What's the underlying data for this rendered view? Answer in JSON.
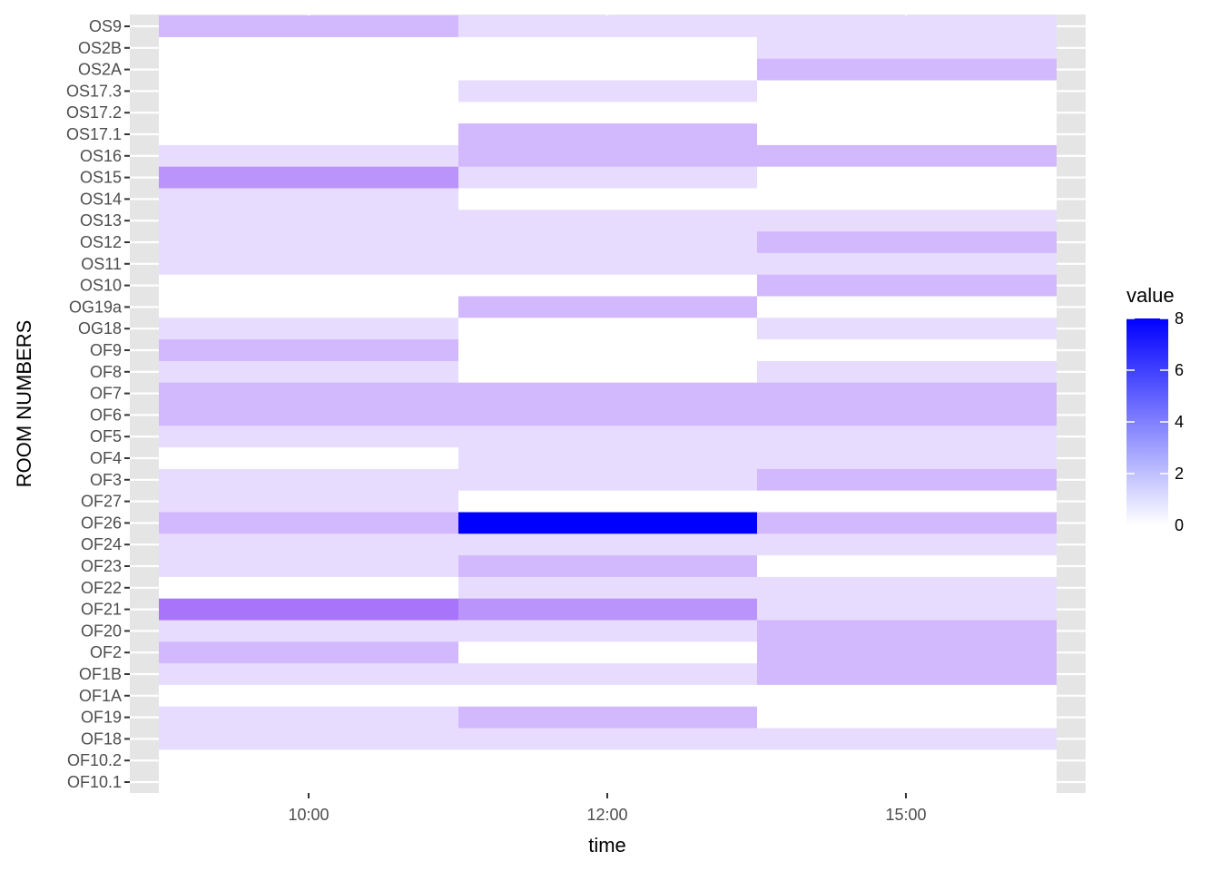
{
  "chart_data": {
    "type": "heatmap",
    "title": "",
    "xlabel": "time",
    "ylabel": "ROOM NUMBERS",
    "x_tick_labels": [
      "10:00",
      "12:00",
      "15:00"
    ],
    "rows": [
      "OS9",
      "OS2B",
      "OS2A",
      "OS17.3",
      "OS17.2",
      "OS17.1",
      "OS16",
      "OS15",
      "OS14",
      "OS13",
      "OS12",
      "OS11",
      "OS10",
      "OG19a",
      "OG18",
      "OF9",
      "OF8",
      "OF7",
      "OF6",
      "OF5",
      "OF4",
      "OF3",
      "OF27",
      "OF26",
      "OF24",
      "OF23",
      "OF22",
      "OF21",
      "OF20",
      "OF2",
      "OF1B",
      "OF1A",
      "OF19",
      "OF18",
      "OF10.2",
      "OF10.1"
    ],
    "cells": [
      {
        "row": "OS9",
        "x": "10:00",
        "value": 2
      },
      {
        "row": "OS9",
        "x": "12:00",
        "value": 1
      },
      {
        "row": "OS9",
        "x": "15:00",
        "value": 1
      },
      {
        "row": "OS2B",
        "x": "15:00",
        "value": 1
      },
      {
        "row": "OS2A",
        "x": "15:00",
        "value": 2
      },
      {
        "row": "OS17.3",
        "x": "12:00",
        "value": 1
      },
      {
        "row": "OS17.1",
        "x": "12:00",
        "value": 2
      },
      {
        "row": "OS16",
        "x": "10:00",
        "value": 1
      },
      {
        "row": "OS16",
        "x": "12:00",
        "value": 2
      },
      {
        "row": "OS16",
        "x": "15:00",
        "value": 2
      },
      {
        "row": "OS15",
        "x": "10:00",
        "value": 3
      },
      {
        "row": "OS15",
        "x": "12:00",
        "value": 1
      },
      {
        "row": "OS14",
        "x": "10:00",
        "value": 1
      },
      {
        "row": "OS13",
        "x": "10:00",
        "value": 1
      },
      {
        "row": "OS13",
        "x": "12:00",
        "value": 1
      },
      {
        "row": "OS13",
        "x": "15:00",
        "value": 1
      },
      {
        "row": "OS12",
        "x": "10:00",
        "value": 1
      },
      {
        "row": "OS12",
        "x": "12:00",
        "value": 1
      },
      {
        "row": "OS12",
        "x": "15:00",
        "value": 2
      },
      {
        "row": "OS11",
        "x": "10:00",
        "value": 1
      },
      {
        "row": "OS11",
        "x": "12:00",
        "value": 1
      },
      {
        "row": "OS11",
        "x": "15:00",
        "value": 1
      },
      {
        "row": "OS10",
        "x": "15:00",
        "value": 2
      },
      {
        "row": "OG19a",
        "x": "12:00",
        "value": 2
      },
      {
        "row": "OG18",
        "x": "10:00",
        "value": 1
      },
      {
        "row": "OG18",
        "x": "15:00",
        "value": 1
      },
      {
        "row": "OF9",
        "x": "10:00",
        "value": 2
      },
      {
        "row": "OF8",
        "x": "10:00",
        "value": 1
      },
      {
        "row": "OF8",
        "x": "15:00",
        "value": 1
      },
      {
        "row": "OF7",
        "x": "10:00",
        "value": 2
      },
      {
        "row": "OF7",
        "x": "12:00",
        "value": 2
      },
      {
        "row": "OF7",
        "x": "15:00",
        "value": 2
      },
      {
        "row": "OF6",
        "x": "10:00",
        "value": 2
      },
      {
        "row": "OF6",
        "x": "12:00",
        "value": 2
      },
      {
        "row": "OF6",
        "x": "15:00",
        "value": 2
      },
      {
        "row": "OF5",
        "x": "10:00",
        "value": 1
      },
      {
        "row": "OF5",
        "x": "12:00",
        "value": 1
      },
      {
        "row": "OF5",
        "x": "15:00",
        "value": 1
      },
      {
        "row": "OF4",
        "x": "12:00",
        "value": 1
      },
      {
        "row": "OF4",
        "x": "15:00",
        "value": 1
      },
      {
        "row": "OF3",
        "x": "10:00",
        "value": 1
      },
      {
        "row": "OF3",
        "x": "12:00",
        "value": 1
      },
      {
        "row": "OF3",
        "x": "15:00",
        "value": 2
      },
      {
        "row": "OF27",
        "x": "10:00",
        "value": 1
      },
      {
        "row": "OF26",
        "x": "10:00",
        "value": 2
      },
      {
        "row": "OF26",
        "x": "12:00",
        "value": 8
      },
      {
        "row": "OF26",
        "x": "15:00",
        "value": 2
      },
      {
        "row": "OF24",
        "x": "10:00",
        "value": 1
      },
      {
        "row": "OF24",
        "x": "12:00",
        "value": 1
      },
      {
        "row": "OF24",
        "x": "15:00",
        "value": 1
      },
      {
        "row": "OF23",
        "x": "10:00",
        "value": 1
      },
      {
        "row": "OF23",
        "x": "12:00",
        "value": 2
      },
      {
        "row": "OF22",
        "x": "12:00",
        "value": 1
      },
      {
        "row": "OF22",
        "x": "15:00",
        "value": 1
      },
      {
        "row": "OF21",
        "x": "10:00",
        "value": 4
      },
      {
        "row": "OF21",
        "x": "12:00",
        "value": 3
      },
      {
        "row": "OF21",
        "x": "15:00",
        "value": 1
      },
      {
        "row": "OF20",
        "x": "10:00",
        "value": 1
      },
      {
        "row": "OF20",
        "x": "12:00",
        "value": 1
      },
      {
        "row": "OF20",
        "x": "15:00",
        "value": 2
      },
      {
        "row": "OF2",
        "x": "10:00",
        "value": 2
      },
      {
        "row": "OF2",
        "x": "15:00",
        "value": 2
      },
      {
        "row": "OF1B",
        "x": "10:00",
        "value": 1
      },
      {
        "row": "OF1B",
        "x": "12:00",
        "value": 1
      },
      {
        "row": "OF1B",
        "x": "15:00",
        "value": 2
      },
      {
        "row": "OF19",
        "x": "10:00",
        "value": 1
      },
      {
        "row": "OF19",
        "x": "12:00",
        "value": 2
      },
      {
        "row": "OF18",
        "x": "10:00",
        "value": 1
      },
      {
        "row": "OF18",
        "x": "12:00",
        "value": 1
      },
      {
        "row": "OF18",
        "x": "15:00",
        "value": 1
      }
    ],
    "color_scale": {
      "low": "#ffffff",
      "high": "#0000ff",
      "range": [
        0,
        8
      ]
    },
    "legend": {
      "title": "value",
      "ticks": [
        0,
        2,
        4,
        6,
        8
      ],
      "placement": "right"
    },
    "panel_background": "#e5e5e5",
    "gridline_color": "#ffffff",
    "grid": true
  }
}
